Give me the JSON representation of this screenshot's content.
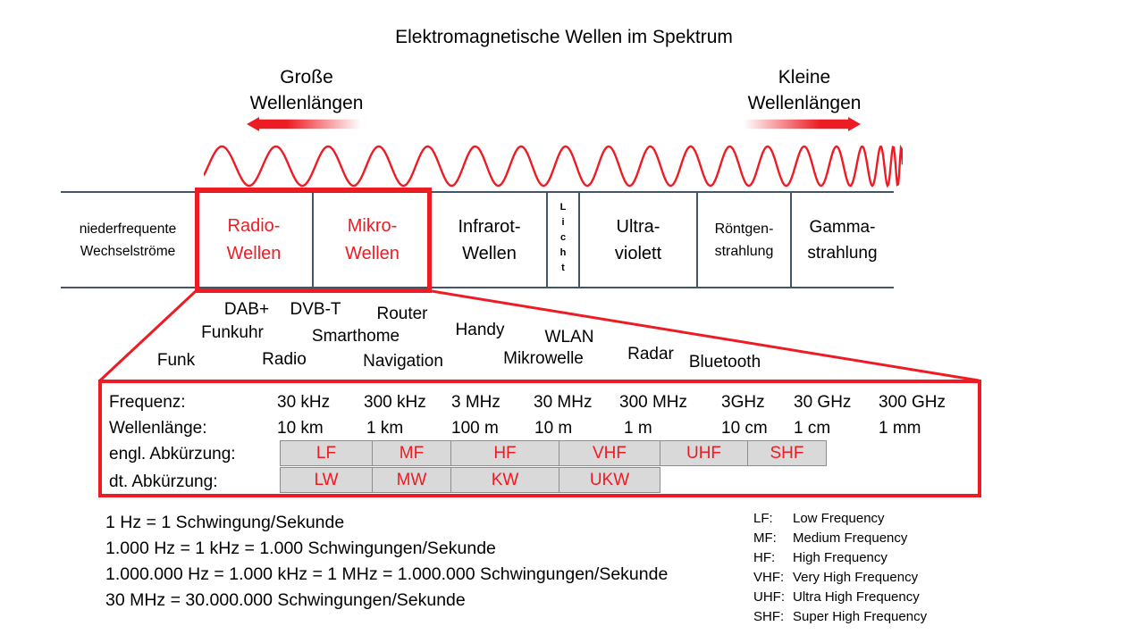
{
  "title": "Elektromagnetische Wellen im Spektrum",
  "colors": {
    "red": "#ed1c24",
    "band_line": "#44546a",
    "cell_bg": "#d9d9d9",
    "cell_border": "#8c8c8c",
    "text": "#000000"
  },
  "wavelength_labels": {
    "left_line1": "Große",
    "left_line2": "Wellenlängen",
    "right_line1": "Kleine",
    "right_line2": "Wellenlängen"
  },
  "spectrum_bands": [
    {
      "line1": "niederfrequente",
      "line2": "Wechselströme"
    },
    {
      "line1": "Radio-",
      "line2": "Wellen"
    },
    {
      "line1": "Mikro-",
      "line2": "Wellen"
    },
    {
      "line1": "Infrarot-",
      "line2": "Wellen"
    },
    {
      "vertical": "Licht"
    },
    {
      "line1": "Ultra-",
      "line2": "violett"
    },
    {
      "line1": "Röntgen-",
      "line2": "strahlung"
    },
    {
      "line1": "Gamma-",
      "line2": "strahlung"
    }
  ],
  "applications": [
    "Funk",
    "Funkuhr",
    "DAB+",
    "DVB-T",
    "Radio",
    "Smarthome",
    "Router",
    "Navigation",
    "Handy",
    "Mikrowelle",
    "WLAN",
    "Radar",
    "Bluetooth"
  ],
  "table": {
    "frequency_label": "Frequenz:",
    "wavelength_label": "Wellenlänge:",
    "en_abbr_label": "engl. Abkürzung:",
    "de_abbr_label": "dt. Abkürzung:",
    "frequencies": [
      "30 kHz",
      "300 kHz",
      "3 MHz",
      "30 MHz",
      "300 MHz",
      "3GHz",
      "30 GHz",
      "300 GHz"
    ],
    "wavelengths": [
      "10 km",
      "1 km",
      "100 m",
      "10 m",
      "1 m",
      "10 cm",
      "1 cm",
      "1 mm"
    ],
    "en_bands": [
      "LF",
      "MF",
      "HF",
      "VHF",
      "UHF",
      "SHF"
    ],
    "de_bands": [
      "LW",
      "MW",
      "KW",
      "UKW"
    ]
  },
  "definitions": [
    "1 Hz = 1 Schwingung/Sekunde",
    "1.000 Hz = 1 kHz = 1.000 Schwingungen/Sekunde",
    "1.000.000 Hz = 1.000 kHz = 1 MHz = 1.000.000 Schwingungen/Sekunde",
    "30 MHz = 30.000.000 Schwingungen/Sekunde"
  ],
  "legend": [
    {
      "abbr": "LF:",
      "name": "Low Frequency"
    },
    {
      "abbr": "MF:",
      "name": "Medium Frequency"
    },
    {
      "abbr": "HF:",
      "name": "High Frequency"
    },
    {
      "abbr": "VHF:",
      "name": "Very High Frequency"
    },
    {
      "abbr": "UHF:",
      "name": "Ultra High Frequency"
    },
    {
      "abbr": "SHF:",
      "name": "Super High Frequency"
    }
  ]
}
